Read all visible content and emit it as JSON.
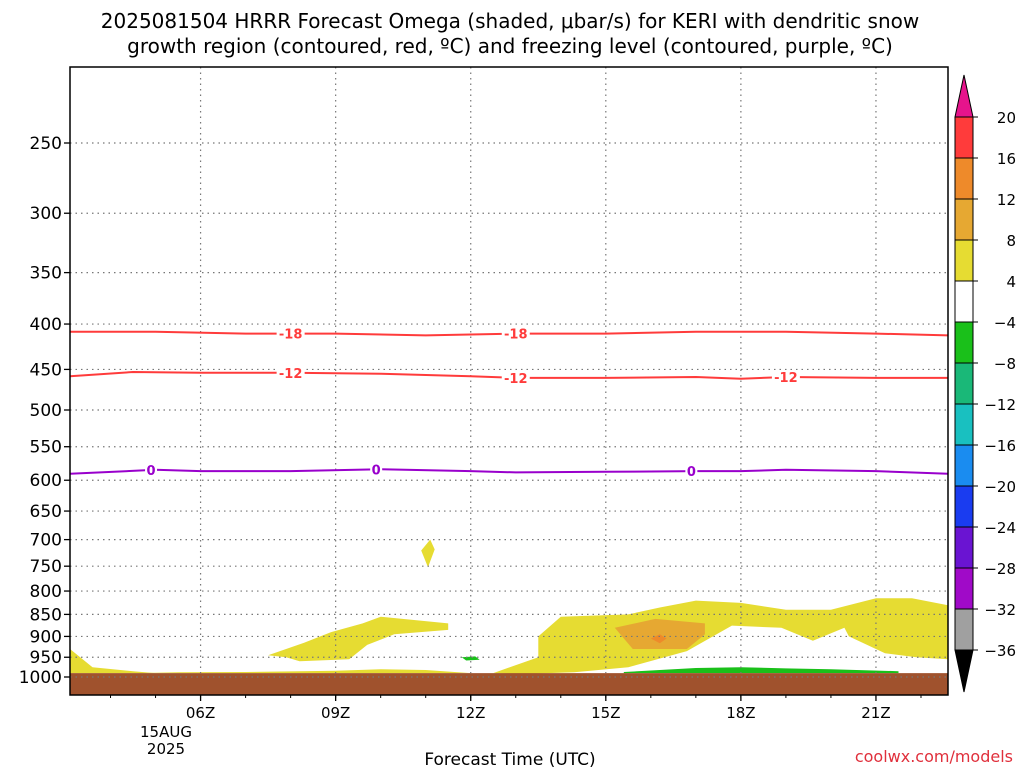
{
  "chart_data": {
    "type": "heatmap",
    "title_line1": "2025081504 HRRR Forecast Omega (shaded, μbar/s) for KERI with dendritic snow",
    "title_line2": "growth region (contoured, red, ºC) and freezing level (contoured, purple, ºC)",
    "xlabel": "Forecast Time (UTC)",
    "x_unit": "hours UTC",
    "xlim": [
      3.1,
      22.6
    ],
    "x_ticks": [
      {
        "value": 6,
        "label": "06Z"
      },
      {
        "value": 9,
        "label": "09Z"
      },
      {
        "value": 12,
        "label": "12Z"
      },
      {
        "value": 15,
        "label": "15Z"
      },
      {
        "value": 18,
        "label": "18Z"
      },
      {
        "value": 21,
        "label": "21Z"
      }
    ],
    "date_label_day": "15AUG",
    "date_label_year": "2025",
    "ylabel": "",
    "y_unit": "hPa",
    "y_scale": "log-pressure (inverted)",
    "ylim": [
      200,
      1050
    ],
    "y_ticks": [
      250,
      300,
      350,
      400,
      450,
      500,
      550,
      600,
      650,
      700,
      750,
      800,
      850,
      900,
      950,
      1000
    ],
    "grid": true,
    "ground_pressure": 990,
    "ground_color": "#a0522d",
    "contours": [
      {
        "name": "-18",
        "color": "#ff3b3b",
        "label_text": "-18",
        "points": [
          [
            3.1,
            408
          ],
          [
            5,
            408
          ],
          [
            7,
            410
          ],
          [
            9,
            410
          ],
          [
            11,
            412
          ],
          [
            13,
            410
          ],
          [
            15,
            410
          ],
          [
            17,
            408
          ],
          [
            19,
            408
          ],
          [
            21,
            410
          ],
          [
            22.6,
            412
          ]
        ],
        "label_x": [
          8,
          13
        ]
      },
      {
        "name": "-12",
        "color": "#ff3b3b",
        "label_text": "-12",
        "points": [
          [
            3.1,
            458
          ],
          [
            4.5,
            453
          ],
          [
            6,
            454
          ],
          [
            8,
            454
          ],
          [
            10,
            455
          ],
          [
            12,
            458
          ],
          [
            13,
            460
          ],
          [
            15,
            460
          ],
          [
            17,
            459
          ],
          [
            18,
            461
          ],
          [
            19,
            459
          ],
          [
            21,
            460
          ],
          [
            22.6,
            460
          ]
        ],
        "label_x": [
          8,
          13,
          19
        ]
      },
      {
        "name": "0",
        "color": "#9900cc",
        "label_text": "0",
        "points": [
          [
            3.1,
            590
          ],
          [
            5,
            584
          ],
          [
            6,
            586
          ],
          [
            8,
            586
          ],
          [
            10,
            583
          ],
          [
            12,
            586
          ],
          [
            13,
            588
          ],
          [
            15,
            587
          ],
          [
            17,
            586
          ],
          [
            18,
            586
          ],
          [
            19,
            584
          ],
          [
            21,
            586
          ],
          [
            22.6,
            590
          ]
        ],
        "label_x": [
          4.9,
          9.9,
          16.9
        ]
      }
    ],
    "regions": [
      {
        "value": 6,
        "color": "#e6dc32",
        "points": [
          [
            3.1,
            930
          ],
          [
            3.6,
            975
          ],
          [
            4.5,
            985
          ],
          [
            5,
            990
          ],
          [
            3.1,
            990
          ]
        ]
      },
      {
        "value": 6,
        "color": "#e6dc32",
        "points": [
          [
            4.6,
            990
          ],
          [
            5.5,
            988
          ],
          [
            7,
            987
          ],
          [
            9,
            984
          ],
          [
            10,
            980
          ],
          [
            11,
            982
          ],
          [
            12,
            990
          ]
        ]
      },
      {
        "value": 6,
        "color": "#e6dc32",
        "points": [
          [
            7.5,
            945
          ],
          [
            8.3,
            915
          ],
          [
            8.9,
            890
          ],
          [
            9.6,
            870
          ],
          [
            10,
            855
          ],
          [
            11.5,
            870
          ],
          [
            11.5,
            885
          ],
          [
            10.3,
            895
          ],
          [
            9.7,
            920
          ],
          [
            9.3,
            955
          ],
          [
            8.2,
            960
          ],
          [
            7.9,
            950
          ]
        ]
      },
      {
        "value": 6,
        "color": "#e6dc32",
        "points": [
          [
            10.9,
            720
          ],
          [
            11.1,
            700
          ],
          [
            11.2,
            718
          ],
          [
            11.05,
            752
          ]
        ]
      },
      {
        "value": 6,
        "color": "#e6dc32",
        "points": [
          [
            12.5,
            990
          ],
          [
            13.5,
            950
          ],
          [
            13.5,
            900
          ],
          [
            14,
            855
          ],
          [
            15.5,
            850
          ],
          [
            16.2,
            835
          ],
          [
            17,
            820
          ],
          [
            18,
            825
          ],
          [
            19,
            840
          ],
          [
            20,
            840
          ],
          [
            21,
            815
          ],
          [
            21.8,
            815
          ],
          [
            22.6,
            830
          ],
          [
            22.6,
            955
          ],
          [
            21.9,
            950
          ],
          [
            21.2,
            940
          ],
          [
            20.4,
            900
          ],
          [
            20.3,
            880
          ],
          [
            19.6,
            910
          ],
          [
            18.9,
            880
          ],
          [
            17.8,
            875
          ],
          [
            16.8,
            935
          ],
          [
            15.5,
            975
          ],
          [
            14.3,
            988
          ],
          [
            13.2,
            992
          ]
        ]
      },
      {
        "value": 10,
        "color": "#e6a832",
        "points": [
          [
            15.2,
            880
          ],
          [
            16.1,
            860
          ],
          [
            17.2,
            870
          ],
          [
            17.2,
            895
          ],
          [
            16.8,
            930
          ],
          [
            15.6,
            930
          ]
        ]
      },
      {
        "value": 14,
        "color": "#ee8a2a",
        "points": [
          [
            16,
            905
          ],
          [
            16.2,
            895
          ],
          [
            16.35,
            905
          ],
          [
            16.2,
            916
          ]
        ]
      },
      {
        "value": -6,
        "color": "#1ac01a",
        "points": [
          [
            11.8,
            950
          ],
          [
            12.1,
            948
          ],
          [
            12.2,
            956
          ],
          [
            11.9,
            958
          ]
        ]
      },
      {
        "value": -6,
        "color": "#1ac01a",
        "points": [
          [
            15.4,
            987
          ],
          [
            17,
            977
          ],
          [
            18,
            975
          ],
          [
            19,
            978
          ],
          [
            20,
            980
          ],
          [
            21.5,
            985
          ],
          [
            21.5,
            990
          ],
          [
            15.4,
            990
          ]
        ]
      }
    ],
    "colorbar": {
      "labels": [
        "20",
        "16",
        "12",
        "8",
        "4",
        "−4",
        "−8",
        "−12",
        "−16",
        "−20",
        "−24",
        "−28",
        "−32",
        "−36"
      ],
      "top_arrow_color": "#e6148c",
      "bottom_arrow_color": "#000000",
      "segments": [
        {
          "color": "#ff3b3b"
        },
        {
          "color": "#ee8a2a"
        },
        {
          "color": "#e6a832"
        },
        {
          "color": "#e6dc32"
        },
        {
          "color": "#ffffff"
        },
        {
          "color": "#1ac01a"
        },
        {
          "color": "#1ab878"
        },
        {
          "color": "#19c0c0"
        },
        {
          "color": "#1a8cf0"
        },
        {
          "color": "#1a3cf0"
        },
        {
          "color": "#6a14d2"
        },
        {
          "color": "#a00ac8"
        },
        {
          "color": "#a0a0a0"
        }
      ]
    }
  },
  "footer": {
    "credit": "coolwx.com/models"
  }
}
